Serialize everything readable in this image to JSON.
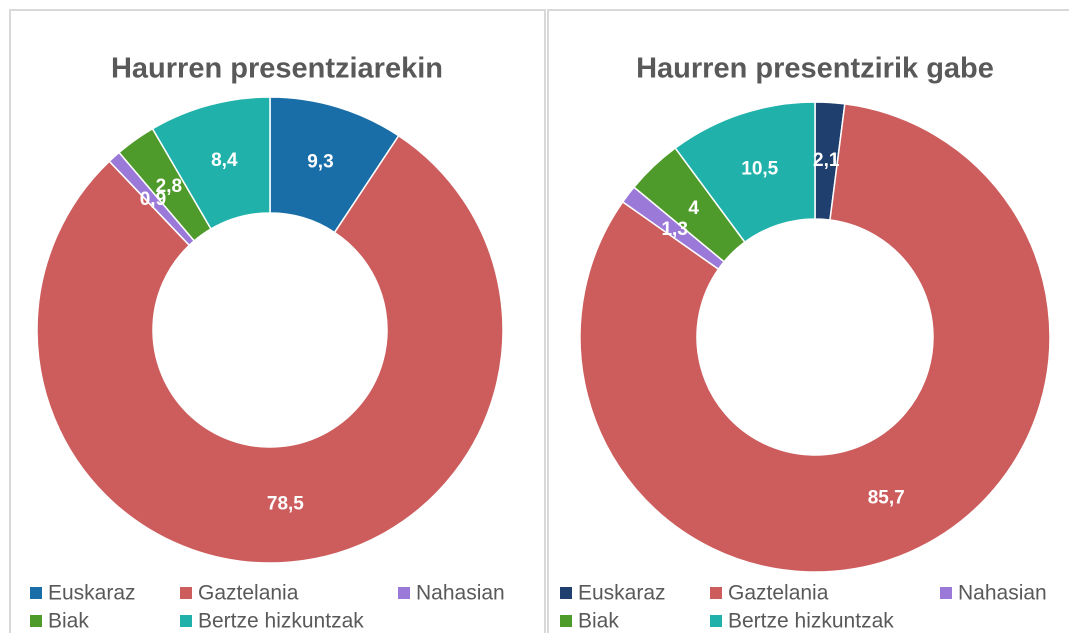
{
  "chart_data": [
    {
      "type": "donut",
      "title": "Haurren presentziarekin",
      "categories": [
        "Euskaraz",
        "Gaztelania",
        "Nahasian",
        "Biak",
        "Bertze hizkuntzak"
      ],
      "values": [
        9.3,
        78.5,
        0.9,
        2.8,
        8.4
      ],
      "value_labels": [
        "9,3",
        "78,5",
        "0,9",
        "2,8",
        "8,4"
      ],
      "colors": [
        "#1a6ea8",
        "#cd5c5c",
        "#9b79d9",
        "#4e9a2a",
        "#20b2aa"
      ]
    },
    {
      "type": "donut",
      "title": "Haurren presentzirik gabe",
      "categories": [
        "Euskaraz",
        "Gaztelania",
        "Nahasian",
        "Biak",
        "Bertze hizkuntzak"
      ],
      "values": [
        2.1,
        85.7,
        1.3,
        4,
        10.5
      ],
      "value_labels": [
        "2,1",
        "85,7",
        "1,3",
        "4",
        "10,5"
      ],
      "colors": [
        "#1f3f6e",
        "#cd5c5c",
        "#9b79d9",
        "#4e9a2a",
        "#20b2aa"
      ]
    }
  ]
}
